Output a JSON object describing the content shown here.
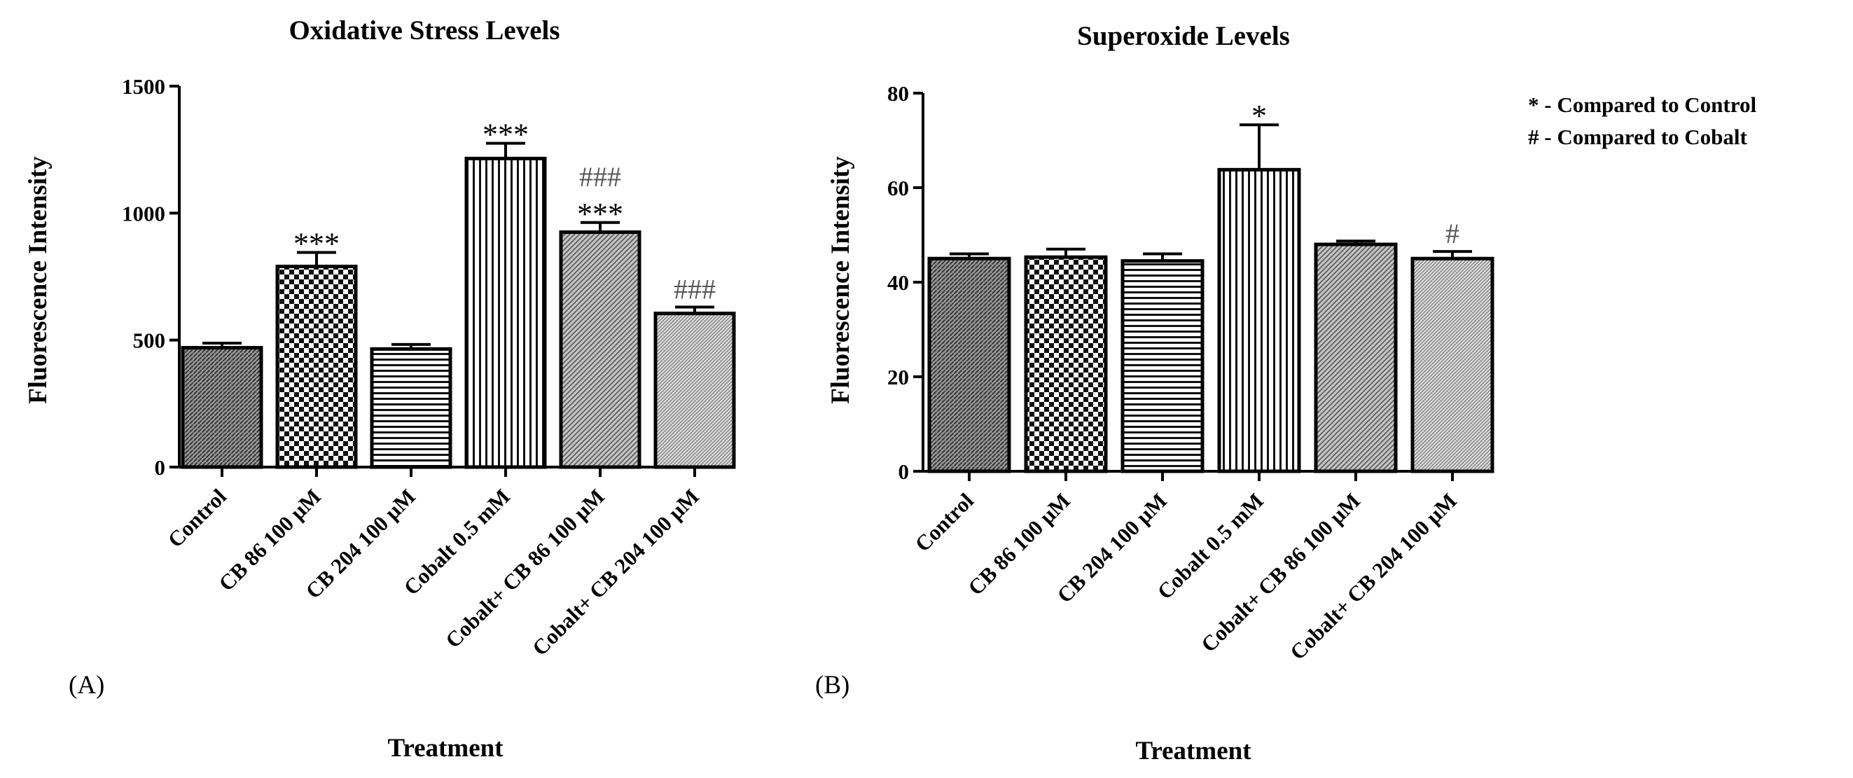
{
  "chart_data": [
    {
      "type": "bar",
      "panel_label": "(A)",
      "title": "Oxidative Stress Levels",
      "xlabel": "Treatment",
      "ylabel": "Fluorescence Intensity",
      "ylim": [
        0,
        1500
      ],
      "yticks": [
        0,
        500,
        1000,
        1500
      ],
      "categories": [
        "Control",
        "CB 86 100 μM",
        "CB 204 100 μM",
        "Cobalt 0.5 mM",
        "Cobalt+ CB 86 100 μM",
        "Cobalt+ CB 204 100 μM"
      ],
      "values": [
        470,
        790,
        465,
        1215,
        925,
        605
      ],
      "errors": [
        18,
        55,
        18,
        60,
        38,
        25
      ],
      "significance_control": [
        "",
        "***",
        "",
        "***",
        "***",
        ""
      ],
      "significance_cobalt": [
        "",
        "",
        "",
        "",
        "###",
        "###"
      ],
      "patterns": [
        "dense",
        "checker",
        "hlines",
        "vlines",
        "diag",
        "finediag"
      ],
      "grid": false
    },
    {
      "type": "bar",
      "panel_label": "(B)",
      "title": "Superoxide Levels",
      "xlabel": "Treatment",
      "ylabel": "Fluorescence Intensity",
      "ylim": [
        0,
        80
      ],
      "yticks": [
        0,
        20,
        40,
        60,
        80
      ],
      "categories": [
        "Control",
        "CB 86 100 μM",
        "CB 204 100 μM",
        "Cobalt 0.5 mM",
        "Cobalt+ CB 86 100 μM",
        "Cobalt+ CB 204 100 μM"
      ],
      "values": [
        45,
        45.3,
        44.5,
        63.8,
        48,
        45
      ],
      "errors": [
        1,
        1.7,
        1.5,
        9.5,
        0.7,
        1.5
      ],
      "significance_control": [
        "",
        "",
        "",
        "*",
        "",
        ""
      ],
      "significance_cobalt": [
        "",
        "",
        "",
        "",
        "",
        "#"
      ],
      "patterns": [
        "dense",
        "checker",
        "hlines",
        "vlines",
        "diag",
        "finediag"
      ],
      "grid": false
    }
  ],
  "legend": {
    "placement": "top-right",
    "entries": [
      "* - Compared to Control",
      "# - Compared to Cobalt"
    ]
  }
}
